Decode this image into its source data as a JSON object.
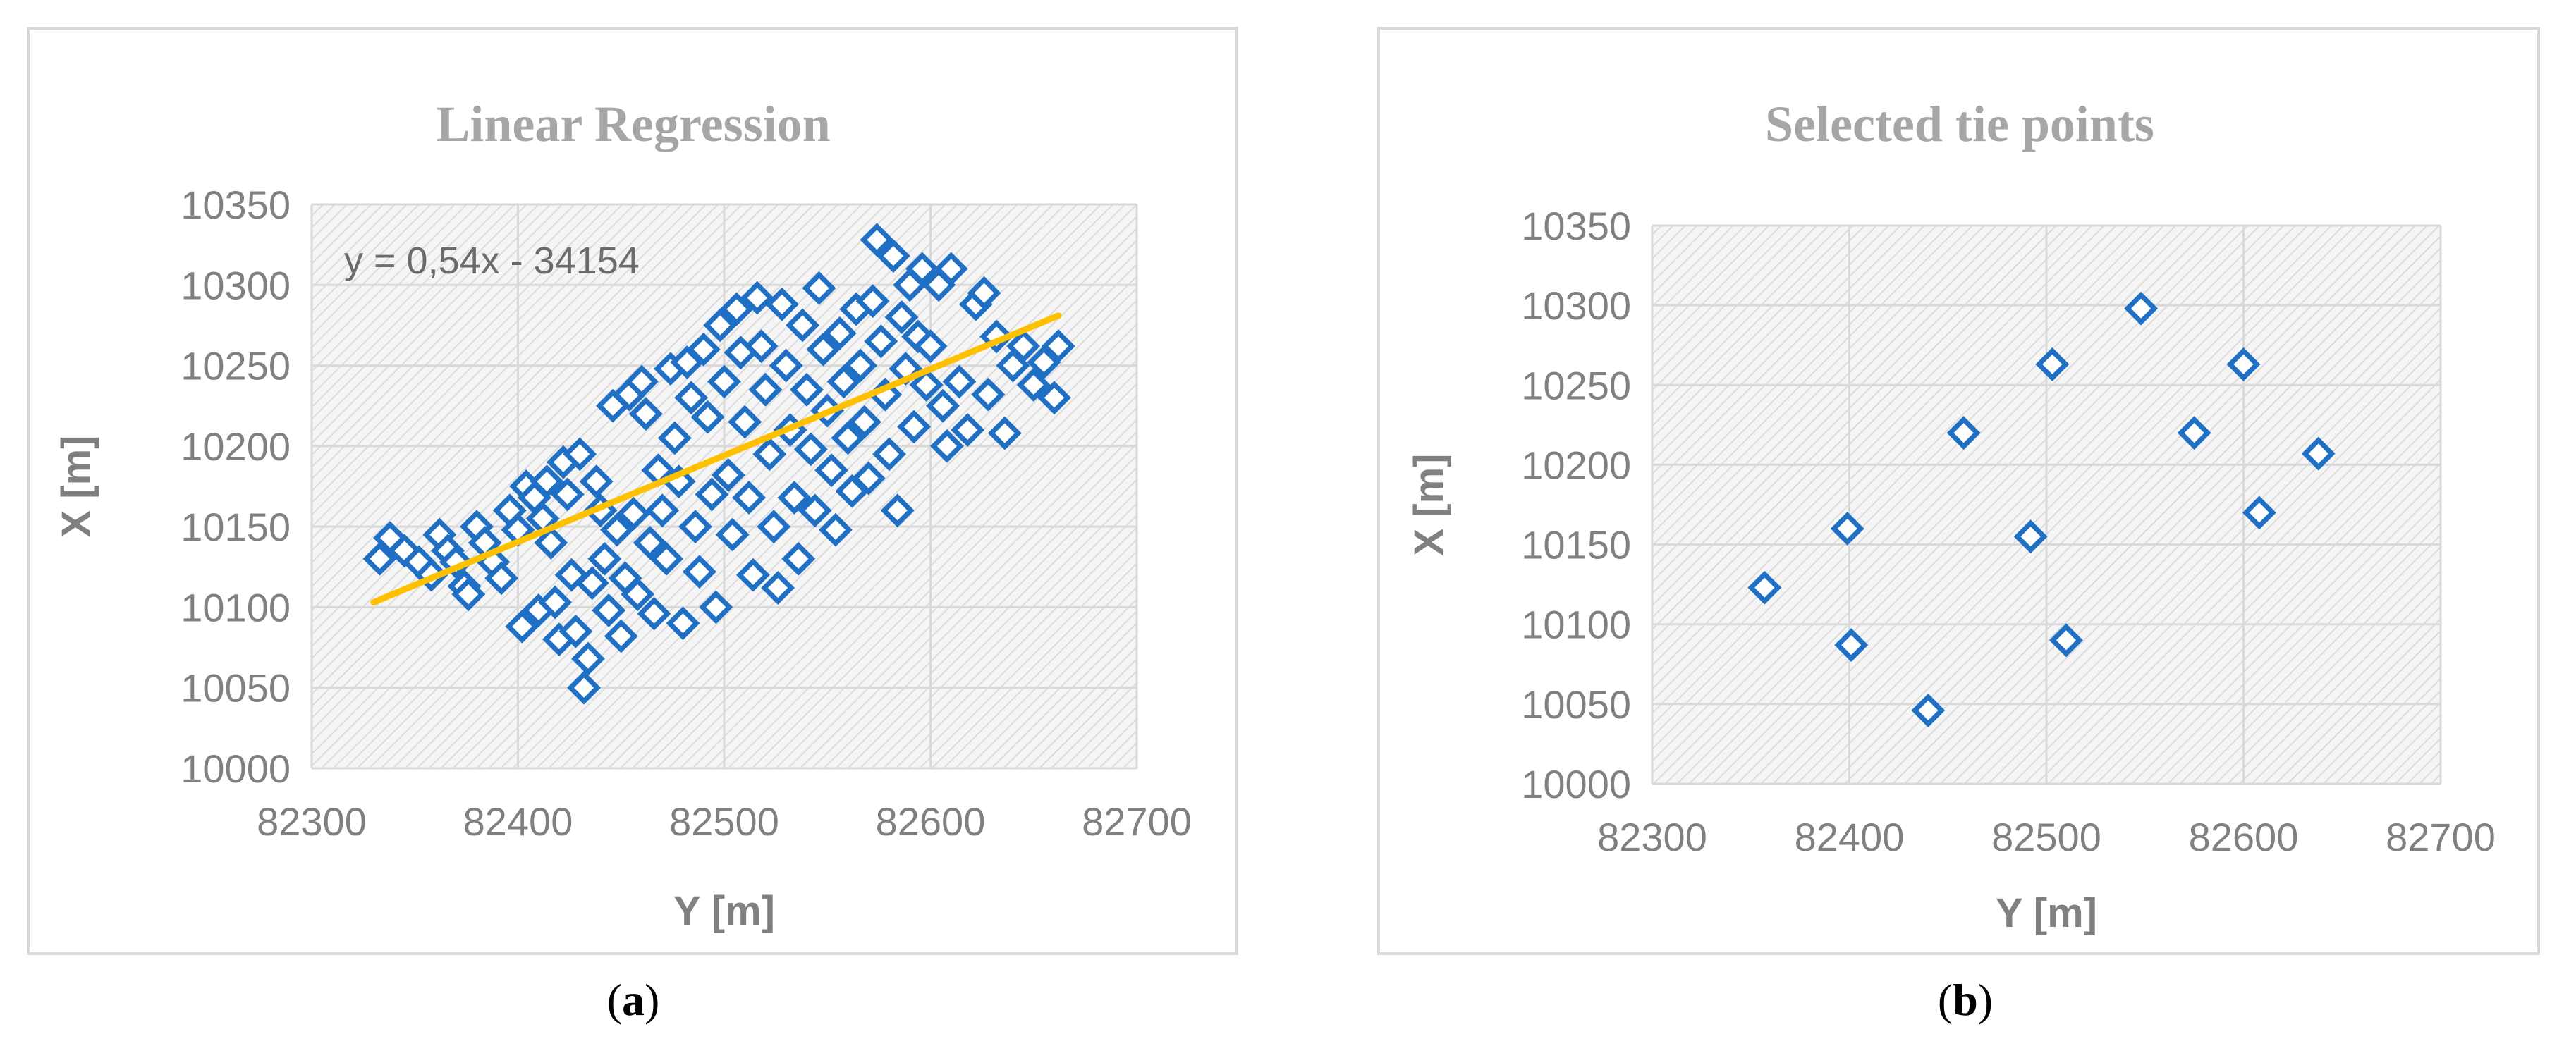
{
  "colors": {
    "marker": "#1f6fc5",
    "trendline": "#ffc000",
    "grid": "#d9d9d9",
    "frame": "#d9d9d9",
    "plot_hatch_bg": "#f5f5f5",
    "plot_hatch_line": "#dcdcdc"
  },
  "panels": [
    {
      "caption": {
        "open": "(",
        "letter": "a",
        "close": ")"
      },
      "chart_data": {
        "type": "scatter",
        "title": "Linear Regression",
        "xlabel": "Y [m]",
        "ylabel": "X [m]",
        "xlim": [
          82300,
          82700
        ],
        "ylim": [
          10000,
          10350
        ],
        "x_ticks": [
          "82300",
          "82400",
          "82500",
          "82600",
          "82700"
        ],
        "y_ticks": [
          "10000",
          "10050",
          "10100",
          "10150",
          "10200",
          "10250",
          "10300",
          "10350"
        ],
        "grid": true,
        "marker": "diamond-open",
        "trendline": {
          "equation": "y = 0,54x - 34154",
          "x": [
            82330,
            82662
          ],
          "y": [
            10103,
            10281
          ]
        },
        "series": [
          {
            "points": [
              [
                82333,
                10130
              ],
              [
                82338,
                10143
              ],
              [
                82345,
                10135
              ],
              [
                82352,
                10128
              ],
              [
                82358,
                10120
              ],
              [
                82362,
                10145
              ],
              [
                82366,
                10135
              ],
              [
                82370,
                10128
              ],
              [
                82374,
                10113
              ],
              [
                82376,
                10108
              ],
              [
                82380,
                10150
              ],
              [
                82384,
                10140
              ],
              [
                82388,
                10128
              ],
              [
                82392,
                10118
              ],
              [
                82396,
                10160
              ],
              [
                82400,
                10148
              ],
              [
                82402,
                10088
              ],
              [
                82404,
                10175
              ],
              [
                82408,
                10168
              ],
              [
                82410,
                10098
              ],
              [
                82412,
                10155
              ],
              [
                82414,
                10178
              ],
              [
                82416,
                10140
              ],
              [
                82418,
                10103
              ],
              [
                82420,
                10080
              ],
              [
                82422,
                10190
              ],
              [
                82424,
                10170
              ],
              [
                82426,
                10120
              ],
              [
                82428,
                10085
              ],
              [
                82430,
                10195
              ],
              [
                82432,
                10050
              ],
              [
                82434,
                10068
              ],
              [
                82436,
                10115
              ],
              [
                82438,
                10178
              ],
              [
                82440,
                10160
              ],
              [
                82442,
                10130
              ],
              [
                82444,
                10098
              ],
              [
                82446,
                10225
              ],
              [
                82448,
                10148
              ],
              [
                82450,
                10082
              ],
              [
                82452,
                10118
              ],
              [
                82454,
                10232
              ],
              [
                82456,
                10158
              ],
              [
                82458,
                10108
              ],
              [
                82460,
                10240
              ],
              [
                82462,
                10220
              ],
              [
                82464,
                10140
              ],
              [
                82466,
                10096
              ],
              [
                82468,
                10185
              ],
              [
                82470,
                10160
              ],
              [
                82472,
                10130
              ],
              [
                82474,
                10248
              ],
              [
                82476,
                10205
              ],
              [
                82478,
                10178
              ],
              [
                82480,
                10090
              ],
              [
                82482,
                10252
              ],
              [
                82484,
                10230
              ],
              [
                82486,
                10150
              ],
              [
                82488,
                10122
              ],
              [
                82490,
                10260
              ],
              [
                82492,
                10218
              ],
              [
                82494,
                10170
              ],
              [
                82496,
                10100
              ],
              [
                82498,
                10275
              ],
              [
                82500,
                10240
              ],
              [
                82502,
                10182
              ],
              [
                82504,
                10145
              ],
              [
                82506,
                10285
              ],
              [
                82508,
                10258
              ],
              [
                82510,
                10215
              ],
              [
                82512,
                10168
              ],
              [
                82514,
                10120
              ],
              [
                82516,
                10292
              ],
              [
                82518,
                10262
              ],
              [
                82520,
                10235
              ],
              [
                82522,
                10195
              ],
              [
                82524,
                10150
              ],
              [
                82526,
                10112
              ],
              [
                82528,
                10288
              ],
              [
                82530,
                10250
              ],
              [
                82532,
                10210
              ],
              [
                82534,
                10168
              ],
              [
                82536,
                10130
              ],
              [
                82538,
                10275
              ],
              [
                82540,
                10235
              ],
              [
                82542,
                10198
              ],
              [
                82544,
                10160
              ],
              [
                82546,
                10298
              ],
              [
                82548,
                10260
              ],
              [
                82550,
                10222
              ],
              [
                82552,
                10185
              ],
              [
                82554,
                10148
              ],
              [
                82556,
                10270
              ],
              [
                82558,
                10240
              ],
              [
                82560,
                10205
              ],
              [
                82562,
                10172
              ],
              [
                82564,
                10285
              ],
              [
                82566,
                10250
              ],
              [
                82568,
                10215
              ],
              [
                82570,
                10180
              ],
              [
                82572,
                10290
              ],
              [
                82574,
                10328
              ],
              [
                82576,
                10265
              ],
              [
                82578,
                10232
              ],
              [
                82580,
                10195
              ],
              [
                82582,
                10318
              ],
              [
                82584,
                10160
              ],
              [
                82586,
                10280
              ],
              [
                82588,
                10248
              ],
              [
                82590,
                10300
              ],
              [
                82592,
                10212
              ],
              [
                82594,
                10268
              ],
              [
                82596,
                10310
              ],
              [
                82598,
                10238
              ],
              [
                82600,
                10262
              ],
              [
                82604,
                10300
              ],
              [
                82606,
                10225
              ],
              [
                82608,
                10200
              ],
              [
                82610,
                10310
              ],
              [
                82614,
                10240
              ],
              [
                82618,
                10210
              ],
              [
                82622,
                10288
              ],
              [
                82626,
                10295
              ],
              [
                82628,
                10232
              ],
              [
                82632,
                10268
              ],
              [
                82636,
                10208
              ],
              [
                82640,
                10250
              ],
              [
                82645,
                10262
              ],
              [
                82650,
                10238
              ],
              [
                82655,
                10252
              ],
              [
                82660,
                10230
              ],
              [
                82662,
                10262
              ]
            ]
          }
        ]
      }
    },
    {
      "caption": {
        "open": "(",
        "letter": "b",
        "close": ")"
      },
      "chart_data": {
        "type": "scatter",
        "title": "Selected tie points",
        "xlabel": "Y [m]",
        "ylabel": "X [m]",
        "xlim": [
          82300,
          82700
        ],
        "ylim": [
          10000,
          10350
        ],
        "x_ticks": [
          "82300",
          "82400",
          "82500",
          "82600",
          "82700"
        ],
        "y_ticks": [
          "10000",
          "10050",
          "10100",
          "10150",
          "10200",
          "10250",
          "10300",
          "10350"
        ],
        "grid": true,
        "marker": "diamond-open",
        "series": [
          {
            "points": [
              [
                82357,
                10123
              ],
              [
                82399,
                10160
              ],
              [
                82401,
                10087
              ],
              [
                82440,
                10046
              ],
              [
                82458,
                10220
              ],
              [
                82492,
                10155
              ],
              [
                82503,
                10263
              ],
              [
                82510,
                10090
              ],
              [
                82548,
                10298
              ],
              [
                82575,
                10220
              ],
              [
                82600,
                10263
              ],
              [
                82608,
                10170
              ],
              [
                82638,
                10207
              ]
            ]
          }
        ]
      }
    }
  ]
}
